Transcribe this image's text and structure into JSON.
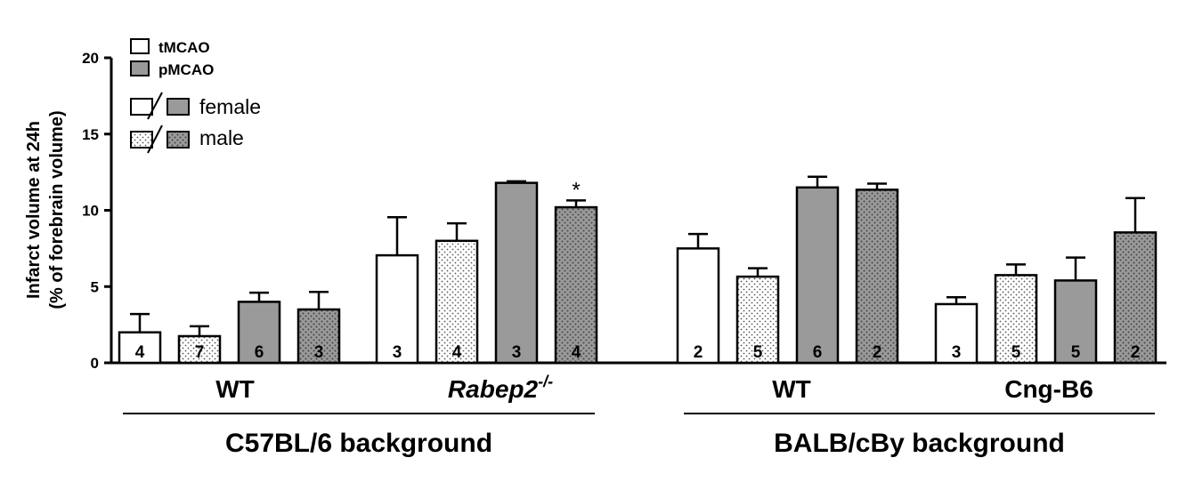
{
  "chart_data": {
    "type": "bar",
    "ylabel_line1": "Infarct volume at 24h",
    "ylabel_line2": "(% of forebrain volume)",
    "ylim": [
      0,
      20
    ],
    "yticks": [
      "0",
      "5",
      "10",
      "15",
      "20"
    ],
    "groups": [
      {
        "label": "WT",
        "label_italic": false,
        "superscript": "",
        "background": "C57BL/6 background"
      },
      {
        "label": "Rabep2",
        "label_italic": true,
        "superscript": "-/-",
        "background": "C57BL/6 background"
      },
      {
        "label": "WT",
        "label_italic": false,
        "superscript": "",
        "background": "BALB/cBy background"
      },
      {
        "label": "Cng-B6",
        "label_italic": false,
        "superscript": "",
        "background": "BALB/cBy background"
      }
    ],
    "backgrounds": [
      "C57BL/6 background",
      "BALB/cBy background"
    ],
    "bar_order": [
      "tMCAO female",
      "tMCAO male",
      "pMCAO female",
      "pMCAO male"
    ],
    "bars": [
      {
        "group": 0,
        "condition": "tMCAO",
        "sex": "female",
        "value": 2.0,
        "error": 1.2,
        "n": "4",
        "sig": ""
      },
      {
        "group": 0,
        "condition": "tMCAO",
        "sex": "male",
        "value": 1.75,
        "error": 0.65,
        "n": "7",
        "sig": ""
      },
      {
        "group": 0,
        "condition": "pMCAO",
        "sex": "female",
        "value": 4.0,
        "error": 0.6,
        "n": "6",
        "sig": ""
      },
      {
        "group": 0,
        "condition": "pMCAO",
        "sex": "male",
        "value": 3.5,
        "error": 1.15,
        "n": "3",
        "sig": ""
      },
      {
        "group": 1,
        "condition": "tMCAO",
        "sex": "female",
        "value": 7.05,
        "error": 2.5,
        "n": "3",
        "sig": ""
      },
      {
        "group": 1,
        "condition": "tMCAO",
        "sex": "male",
        "value": 8.0,
        "error": 1.15,
        "n": "4",
        "sig": ""
      },
      {
        "group": 1,
        "condition": "pMCAO",
        "sex": "female",
        "value": 11.8,
        "error": 0.1,
        "n": "3",
        "sig": ""
      },
      {
        "group": 1,
        "condition": "pMCAO",
        "sex": "male",
        "value": 10.2,
        "error": 0.45,
        "n": "4",
        "sig": "*"
      },
      {
        "group": 2,
        "condition": "tMCAO",
        "sex": "female",
        "value": 7.5,
        "error": 0.95,
        "n": "2",
        "sig": ""
      },
      {
        "group": 2,
        "condition": "tMCAO",
        "sex": "male",
        "value": 5.65,
        "error": 0.55,
        "n": "5",
        "sig": ""
      },
      {
        "group": 2,
        "condition": "pMCAO",
        "sex": "female",
        "value": 11.5,
        "error": 0.7,
        "n": "6",
        "sig": ""
      },
      {
        "group": 2,
        "condition": "pMCAO",
        "sex": "male",
        "value": 11.35,
        "error": 0.4,
        "n": "2",
        "sig": ""
      },
      {
        "group": 3,
        "condition": "tMCAO",
        "sex": "female",
        "value": 3.85,
        "error": 0.45,
        "n": "3",
        "sig": ""
      },
      {
        "group": 3,
        "condition": "tMCAO",
        "sex": "male",
        "value": 5.75,
        "error": 0.7,
        "n": "5",
        "sig": ""
      },
      {
        "group": 3,
        "condition": "pMCAO",
        "sex": "female",
        "value": 5.4,
        "error": 1.5,
        "n": "5",
        "sig": ""
      },
      {
        "group": 3,
        "condition": "pMCAO",
        "sex": "male",
        "value": 8.55,
        "error": 2.25,
        "n": "2",
        "sig": ""
      }
    ],
    "legend": {
      "placement": "top-left",
      "conditions": [
        {
          "label": "tMCAO",
          "color": "#ffffff"
        },
        {
          "label": "pMCAO",
          "color": "#9a9a9a"
        }
      ],
      "sexes": [
        {
          "label": "female",
          "pattern": "solid"
        },
        {
          "label": "male",
          "pattern": "dotted"
        }
      ]
    },
    "colors": {
      "tmcao_fill": "#ffffff",
      "pmcao_fill": "#9a9a9a",
      "stroke": "#000000"
    }
  }
}
